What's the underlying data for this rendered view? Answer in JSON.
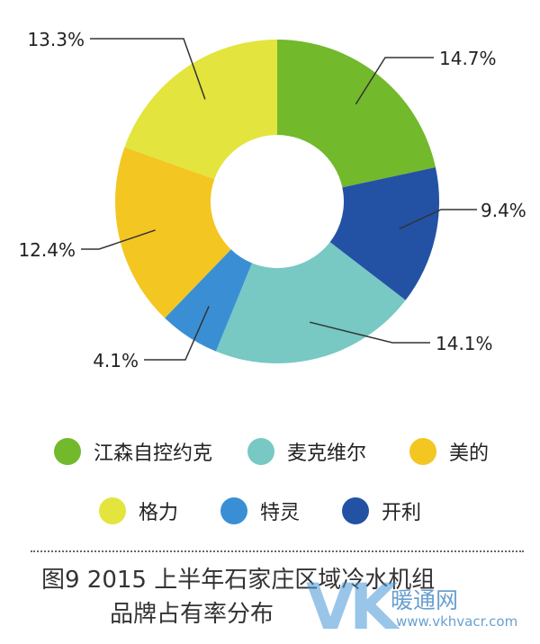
{
  "chart_data": {
    "type": "pie",
    "series": [
      {
        "name": "江森自控约克",
        "label": "14.7%",
        "value": 14.7,
        "color": "#72b92c"
      },
      {
        "name": "开利",
        "label": "9.4%",
        "value": 9.4,
        "color": "#2352a5"
      },
      {
        "name": "麦克维尔",
        "label": "14.1%",
        "value": 14.1,
        "color": "#78c8c4"
      },
      {
        "name": "特灵",
        "label": "4.1%",
        "value": 4.1,
        "color": "#3a8fd4"
      },
      {
        "name": "美的",
        "label": "12.4%",
        "value": 12.4,
        "color": "#f3c622"
      },
      {
        "name": "格力",
        "label": "13.3%",
        "value": 13.3,
        "color": "#e3e43d"
      }
    ],
    "legend": [
      "江森自控约克",
      "麦克维尔",
      "美的",
      "格力",
      "特灵",
      "开利"
    ],
    "legend_position": "bottom",
    "title": "图9  2015上半年石家庄区域冷水机组品牌占有率分布"
  },
  "caption": {
    "line1": "图9  2015 上半年石家庄区域冷水机组",
    "line2": "品牌占有率分布"
  },
  "watermark": {
    "logo_text": "VK",
    "text": "暖通网",
    "url": "www.vkhvacr.com"
  }
}
